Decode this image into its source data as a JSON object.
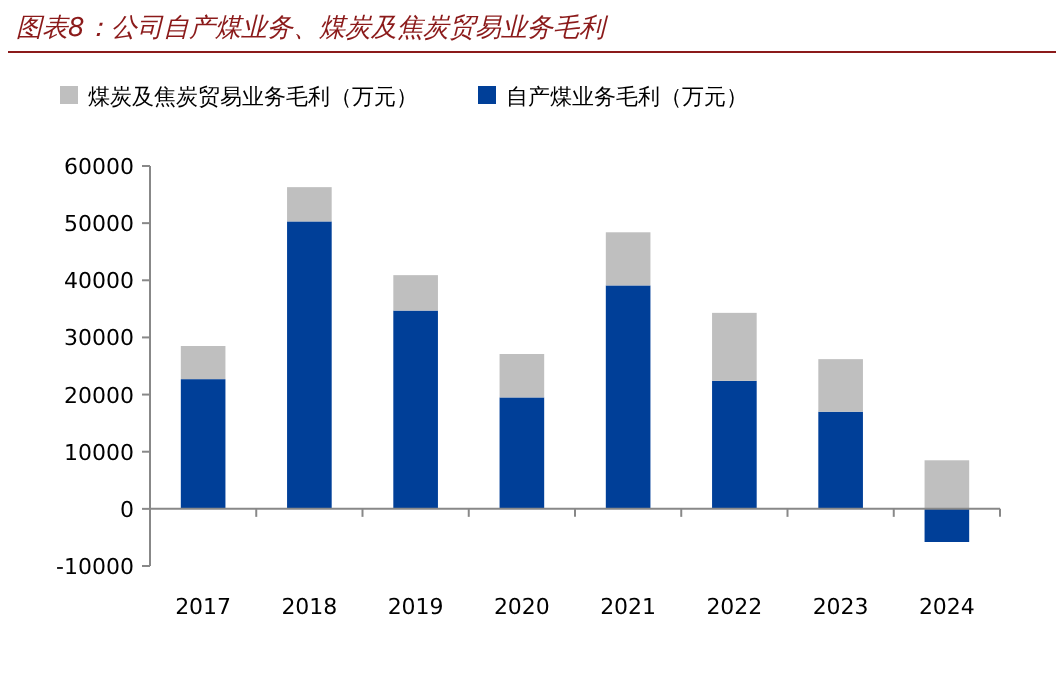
{
  "chart_data": {
    "type": "bar",
    "title": "图表8：公司自产煤业务、煤炭及焦炭贸易业务毛利",
    "categories": [
      "2017",
      "2018",
      "2019",
      "2020",
      "2021",
      "2022",
      "2023",
      "2024"
    ],
    "stacked": true,
    "legend": "top",
    "ylim": [
      -10000,
      60000
    ],
    "yticks": [
      -10000,
      0,
      10000,
      20000,
      30000,
      40000,
      50000,
      60000
    ],
    "series": [
      {
        "name": "自产煤业务毛利（万元）",
        "color": "#003f98",
        "values": [
          22700,
          50300,
          34700,
          19500,
          39100,
          22400,
          17000,
          -5800
        ]
      },
      {
        "name": "煤炭及焦炭贸易业务毛利（万元）",
        "color": "#bfbfbf",
        "values": [
          5800,
          6000,
          6200,
          7600,
          9300,
          11900,
          9200,
          8500
        ]
      }
    ]
  }
}
